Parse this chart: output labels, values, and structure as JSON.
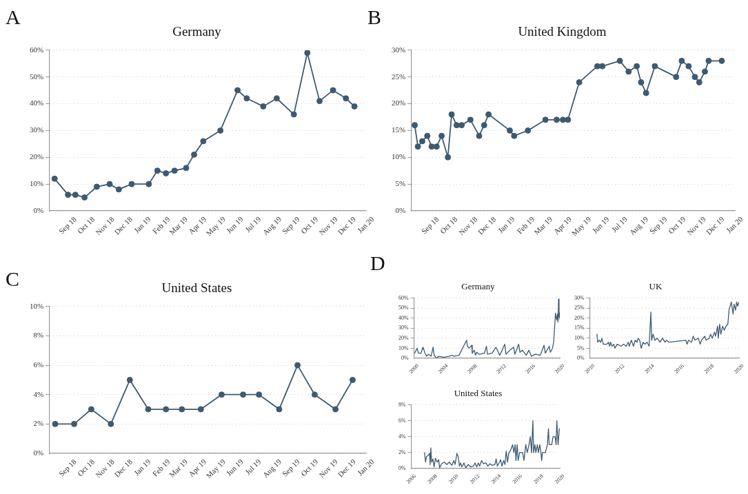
{
  "chart_data": [
    {
      "type": "line",
      "title": "Germany",
      "annotations": [
        "A"
      ],
      "marker": "circle",
      "grid": "y",
      "color": "#3e5a70",
      "x": [
        "2018-08-10",
        "2018-09-01",
        "2018-09-13",
        "2018-09-28",
        "2018-10-18",
        "2018-11-08",
        "2018-11-23",
        "2018-12-14",
        "2019-01-11",
        "2019-01-25",
        "2019-02-08",
        "2019-02-22",
        "2019-03-13",
        "2019-03-26",
        "2019-04-10",
        "2019-05-08",
        "2019-06-05",
        "2019-06-20",
        "2019-07-17",
        "2019-08-08",
        "2019-09-05",
        "2019-09-27",
        "2019-10-17",
        "2019-11-08",
        "2019-11-29",
        "2019-12-13"
      ],
      "values": [
        12,
        6,
        6,
        5,
        9,
        10,
        8,
        10,
        10,
        15,
        14,
        15,
        16,
        21,
        26,
        30,
        45,
        42,
        39,
        42,
        36,
        59,
        41,
        45,
        42,
        39
      ],
      "xlim": [
        "2018-08-01",
        "2020-01-01"
      ],
      "xticks": [
        {
          "value": "2018-09-01",
          "label": "Sep 18"
        },
        {
          "value": "2018-10-01",
          "label": "Oct 18"
        },
        {
          "value": "2018-11-01",
          "label": "Nov 18"
        },
        {
          "value": "2018-12-01",
          "label": "Dec 18"
        },
        {
          "value": "2019-01-01",
          "label": "Jan 19"
        },
        {
          "value": "2019-02-01",
          "label": "Feb 19"
        },
        {
          "value": "2019-03-01",
          "label": "Mar 19"
        },
        {
          "value": "2019-04-01",
          "label": "Apr 19"
        },
        {
          "value": "2019-05-01",
          "label": "May 19"
        },
        {
          "value": "2019-06-01",
          "label": "Jun 19"
        },
        {
          "value": "2019-07-01",
          "label": "Jul 19"
        },
        {
          "value": "2019-08-01",
          "label": "Aug 19"
        },
        {
          "value": "2019-09-01",
          "label": "Sep 19"
        },
        {
          "value": "2019-10-01",
          "label": "Oct 19"
        },
        {
          "value": "2019-11-01",
          "label": "Nov 19"
        },
        {
          "value": "2019-12-01",
          "label": "Dec 19"
        },
        {
          "value": "2020-01-01",
          "label": "Jan 20"
        }
      ],
      "ylim": [
        0,
        60
      ],
      "yticks": [
        {
          "value": 0,
          "label": "0%"
        },
        {
          "value": 10,
          "label": "10%"
        },
        {
          "value": 20,
          "label": "20%"
        },
        {
          "value": 30,
          "label": "30%"
        },
        {
          "value": 40,
          "label": "40%"
        },
        {
          "value": 50,
          "label": "50%"
        },
        {
          "value": 60,
          "label": "60%"
        }
      ]
    },
    {
      "type": "line",
      "title": "United Kingdom",
      "annotations": [
        "B"
      ],
      "marker": "circle",
      "grid": "y",
      "color": "#3e5a70",
      "x": [
        "2018-08-07",
        "2018-08-12",
        "2018-08-19",
        "2018-08-27",
        "2018-09-03",
        "2018-09-11",
        "2018-09-19",
        "2018-09-29",
        "2018-10-05",
        "2018-10-13",
        "2018-10-21",
        "2018-11-04",
        "2018-11-18",
        "2018-11-26",
        "2018-12-03",
        "2019-01-06",
        "2019-01-13",
        "2019-02-04",
        "2019-03-04",
        "2019-03-22",
        "2019-04-01",
        "2019-04-09",
        "2019-04-27",
        "2019-05-26",
        "2019-06-03",
        "2019-07-01",
        "2019-07-15",
        "2019-07-28",
        "2019-08-04",
        "2019-08-12",
        "2019-08-26",
        "2019-09-29",
        "2019-10-08",
        "2019-10-19",
        "2019-10-29",
        "2019-11-05",
        "2019-11-14",
        "2019-11-20",
        "2019-12-11"
      ],
      "values": [
        16,
        12,
        13,
        14,
        12,
        12,
        14,
        10,
        18,
        16,
        16,
        17,
        14,
        16,
        18,
        15,
        14,
        15,
        17,
        17,
        17,
        17,
        24,
        27,
        27,
        28,
        26,
        27,
        24,
        22,
        27,
        25,
        28,
        27,
        25,
        24,
        26,
        28,
        28
      ],
      "xlim": [
        "2018-08-01",
        "2020-01-01"
      ],
      "xticks": [
        {
          "value": "2018-09-01",
          "label": "Sep 18"
        },
        {
          "value": "2018-10-01",
          "label": "Oct 18"
        },
        {
          "value": "2018-11-01",
          "label": "Nov 18"
        },
        {
          "value": "2018-12-01",
          "label": "Dec 18"
        },
        {
          "value": "2019-01-01",
          "label": "Jan 19"
        },
        {
          "value": "2019-02-01",
          "label": "Feb 19"
        },
        {
          "value": "2019-03-01",
          "label": "Mar 19"
        },
        {
          "value": "2019-04-01",
          "label": "Apr 19"
        },
        {
          "value": "2019-05-01",
          "label": "May 19"
        },
        {
          "value": "2019-06-01",
          "label": "Jun 19"
        },
        {
          "value": "2019-07-01",
          "label": "Jul 19"
        },
        {
          "value": "2019-08-01",
          "label": "Aug 19"
        },
        {
          "value": "2019-09-01",
          "label": "Sep 19"
        },
        {
          "value": "2019-10-01",
          "label": "Oct 19"
        },
        {
          "value": "2019-11-01",
          "label": "Nov 19"
        },
        {
          "value": "2019-12-01",
          "label": "Dec 19"
        },
        {
          "value": "2020-01-01",
          "label": "Jan 20"
        }
      ],
      "ylim": [
        0,
        30
      ],
      "yticks": [
        {
          "value": 0,
          "label": "0%"
        },
        {
          "value": 5,
          "label": "5%"
        },
        {
          "value": 10,
          "label": "10%"
        },
        {
          "value": 15,
          "label": "15%"
        },
        {
          "value": 20,
          "label": "20%"
        },
        {
          "value": 25,
          "label": "25%"
        },
        {
          "value": 30,
          "label": "30%"
        }
      ]
    },
    {
      "type": "line",
      "title": "United States",
      "annotations": [
        "C"
      ],
      "marker": "circle",
      "grid": "y",
      "color": "#3e5a70",
      "x": [
        "2018-08-11",
        "2018-09-11",
        "2018-10-09",
        "2018-11-10",
        "2018-12-11",
        "2019-01-10",
        "2019-02-08",
        "2019-03-06",
        "2019-04-06",
        "2019-05-10",
        "2019-06-14",
        "2019-07-10",
        "2019-08-12",
        "2019-09-11",
        "2019-10-09",
        "2019-11-12",
        "2019-12-10"
      ],
      "values": [
        2,
        2,
        3,
        2,
        5,
        3,
        3,
        3,
        3,
        4,
        4,
        4,
        3,
        6,
        4,
        3,
        5
      ],
      "xlim": [
        "2018-08-01",
        "2020-01-01"
      ],
      "xticks": [
        {
          "value": "2018-09-01",
          "label": "Sep 18"
        },
        {
          "value": "2018-10-01",
          "label": "Oct 18"
        },
        {
          "value": "2018-11-01",
          "label": "Nov 18"
        },
        {
          "value": "2018-12-01",
          "label": "Dec 18"
        },
        {
          "value": "2019-01-01",
          "label": "Jan 19"
        },
        {
          "value": "2019-02-01",
          "label": "Feb 19"
        },
        {
          "value": "2019-03-01",
          "label": "Mar 19"
        },
        {
          "value": "2019-04-01",
          "label": "Apr 19"
        },
        {
          "value": "2019-05-01",
          "label": "May 19"
        },
        {
          "value": "2019-06-01",
          "label": "Jun 19"
        },
        {
          "value": "2019-07-01",
          "label": "Jul 19"
        },
        {
          "value": "2019-08-01",
          "label": "Aug 19"
        },
        {
          "value": "2019-09-01",
          "label": "Sep 19"
        },
        {
          "value": "2019-10-01",
          "label": "Oct 19"
        },
        {
          "value": "2019-11-01",
          "label": "Nov 19"
        },
        {
          "value": "2019-12-01",
          "label": "Dec 19"
        },
        {
          "value": "2020-01-01",
          "label": "Jan 20"
        }
      ],
      "ylim": [
        0,
        10
      ],
      "yticks": [
        {
          "value": 0,
          "label": "0%"
        },
        {
          "value": 2,
          "label": "2%"
        },
        {
          "value": 4,
          "label": "4%"
        },
        {
          "value": 6,
          "label": "6%"
        },
        {
          "value": 8,
          "label": "8%"
        },
        {
          "value": 10,
          "label": "10%"
        }
      ]
    },
    {
      "type": "line",
      "title": "Germany",
      "annotations": [
        "D"
      ],
      "grid": "y",
      "color": "#3e5a70",
      "x": [
        2000.07,
        2000.42,
        2000.59,
        2000.94,
        2001.22,
        2001.46,
        2001.71,
        2001.99,
        2002.33,
        2002.61,
        2002.75,
        2003.1,
        2003.38,
        2004.08,
        2004.77,
        2005.3,
        2005.47,
        2006.17,
        2007.21,
        2007.32,
        2007.56,
        2007.91,
        2007.98,
        2008.26,
        2008.43,
        2008.61,
        2008.95,
        2009.65,
        2009.93,
        2010.07,
        2010.7,
        2011.22,
        2011.57,
        2011.74,
        2012.09,
        2012.44,
        2012.61,
        2013.14,
        2013.66,
        2013.83,
        2014.36,
        2014.53,
        2014.88,
        2015.4,
        2015.75,
        2016.1,
        2016.62,
        2017.32,
        2017.84,
        2018.01,
        2018.54,
        2018.71,
        2018.99,
        2019.16,
        2019.41,
        2019.58,
        2019.69,
        2019.76,
        2019.83,
        2019.9,
        2019.97,
        2020.0
      ],
      "values": [
        5,
        10,
        5,
        5,
        11,
        6,
        2,
        4,
        2,
        11,
        3,
        0,
        2,
        1,
        2,
        3,
        2,
        3,
        18,
        12,
        10,
        13,
        5,
        8,
        3,
        6,
        4,
        5,
        12,
        4,
        5,
        11,
        6,
        3,
        8,
        14,
        4,
        8,
        11,
        4,
        14,
        6,
        8,
        3,
        8,
        2,
        4,
        3,
        13,
        5,
        12,
        6,
        10,
        16,
        45,
        38,
        44,
        36,
        59,
        41,
        45,
        39
      ],
      "xlim": [
        2000,
        2020
      ],
      "xticks": [
        2000,
        2004,
        2008,
        2012,
        2016,
        2020
      ],
      "ylim": [
        0,
        60
      ],
      "yticks": [
        {
          "value": 0,
          "label": "0%"
        },
        {
          "value": 10,
          "label": "10%"
        },
        {
          "value": 20,
          "label": "20%"
        },
        {
          "value": 30,
          "label": "30%"
        },
        {
          "value": 40,
          "label": "40%"
        },
        {
          "value": 50,
          "label": "50%"
        },
        {
          "value": 60,
          "label": "60%"
        }
      ]
    },
    {
      "type": "line",
      "title": "UK",
      "grid": "y",
      "color": "#3e5a70",
      "x": [
        2010.47,
        2010.52,
        2010.61,
        2010.73,
        2010.8,
        2010.9,
        2011.13,
        2011.25,
        2011.32,
        2011.39,
        2011.48,
        2011.6,
        2011.67,
        2011.83,
        2012.09,
        2012.26,
        2012.43,
        2012.57,
        2012.64,
        2012.78,
        2012.92,
        2013.04,
        2013.17,
        2013.23,
        2013.34,
        2013.44,
        2013.57,
        2013.69,
        2013.83,
        2013.97,
        2014.09,
        2014.14,
        2014.23,
        2014.35,
        2014.52,
        2014.7,
        2014.87,
        2015.04,
        2015.13,
        2015.3,
        2016.43,
        2016.52,
        2016.61,
        2016.82,
        2016.92,
        2017.04,
        2017.27,
        2017.39,
        2017.48,
        2017.7,
        2017.79,
        2018.0,
        2018.09,
        2018.21,
        2018.35,
        2018.43,
        2018.56,
        2018.61,
        2018.7,
        2018.78,
        2018.9,
        2019.01,
        2019.13,
        2019.25,
        2019.33,
        2019.48,
        2019.6,
        2019.67,
        2019.77,
        2019.84,
        2019.91,
        2020.0
      ],
      "values": [
        12,
        8,
        9,
        8,
        10,
        7,
        7,
        8,
        6,
        8,
        6,
        7,
        5,
        7,
        6,
        7,
        6,
        8,
        6,
        9,
        6,
        9,
        8,
        10,
        9,
        5,
        8,
        7,
        8,
        6,
        23,
        9,
        12,
        9,
        10,
        8,
        10,
        8,
        9,
        8,
        9,
        7,
        9,
        8,
        11,
        9,
        10,
        7,
        9,
        11,
        9,
        10,
        12,
        10,
        13,
        11,
        16,
        10,
        17,
        12,
        16,
        14,
        16,
        17,
        24,
        28,
        22,
        27,
        24,
        28,
        26,
        28
      ],
      "xlim": [
        2010,
        2020
      ],
      "xticks": [
        2010,
        2012,
        2014,
        2016,
        2018,
        2020
      ],
      "ylim": [
        0,
        30
      ],
      "yticks": [
        {
          "value": 0,
          "label": "0%"
        },
        {
          "value": 5,
          "label": "5%"
        },
        {
          "value": 10,
          "label": "10%"
        },
        {
          "value": 15,
          "label": "15%"
        },
        {
          "value": 20,
          "label": "20%"
        },
        {
          "value": 25,
          "label": "25%"
        },
        {
          "value": 30,
          "label": "30%"
        }
      ]
    },
    {
      "type": "line",
      "title": "United States",
      "grid": "y",
      "color": "#3e5a70",
      "x": [
        2007.24,
        2007.34,
        2007.43,
        2007.62,
        2007.72,
        2007.77,
        2007.84,
        2007.91,
        2008.03,
        2008.15,
        2008.27,
        2008.43,
        2008.58,
        2008.67,
        2008.86,
        2009.1,
        2009.34,
        2009.58,
        2009.82,
        2010.01,
        2010.13,
        2010.3,
        2010.44,
        2010.53,
        2010.65,
        2010.77,
        2010.96,
        2011.13,
        2011.37,
        2011.61,
        2011.85,
        2012.01,
        2012.16,
        2012.32,
        2012.44,
        2012.63,
        2012.8,
        2013.04,
        2013.21,
        2013.4,
        2013.64,
        2013.88,
        2014.0,
        2014.11,
        2014.31,
        2014.42,
        2014.54,
        2014.71,
        2014.83,
        2014.95,
        2015.07,
        2015.19,
        2015.36,
        2015.55,
        2015.67,
        2015.79,
        2015.86,
        2015.98,
        2016.07,
        2016.21,
        2016.5,
        2016.62,
        2016.79,
        2016.93,
        2017.1,
        2017.22,
        2017.34,
        2017.46,
        2017.53,
        2017.65,
        2017.74,
        2017.89,
        2017.98,
        2018.12,
        2018.22,
        2018.29,
        2018.36,
        2018.64,
        2018.83,
        2018.93,
        2019.0,
        2019.24,
        2019.36,
        2019.56,
        2019.65,
        2019.72,
        2019.84,
        2019.96
      ],
      "values": [
        2.0,
        0.8,
        1.5,
        1.7,
        1.9,
        0.5,
        2.6,
        0.8,
        1.2,
        0.2,
        1.3,
        0.8,
        1.1,
        0.1,
        0.6,
        0.8,
        0.5,
        0.8,
        0.4,
        1.0,
        0.5,
        1.9,
        1.4,
        0.3,
        0.7,
        0.2,
        0.7,
        0.1,
        0.5,
        0.2,
        0.3,
        0.7,
        0.2,
        0.7,
        0.3,
        1.0,
        0.6,
        0.7,
        0.3,
        0.6,
        0.4,
        0.5,
        1.2,
        0.3,
        0.8,
        1.1,
        0.3,
        1.0,
        0.5,
        2.2,
        0.8,
        1.9,
        2.3,
        3,
        2,
        3,
        1,
        3,
        1,
        2,
        2,
        1,
        3,
        2,
        3,
        4,
        2,
        6,
        2,
        3,
        2,
        3,
        2,
        3,
        2,
        1,
        2,
        2,
        3,
        5,
        3,
        3,
        4,
        4,
        3,
        6,
        3,
        5
      ],
      "xlim": [
        2006,
        2020
      ],
      "xticks": [
        2006,
        2008,
        2010,
        2012,
        2014,
        2016,
        2018,
        2020
      ],
      "ylim": [
        0,
        8
      ],
      "yticks": [
        {
          "value": 0,
          "label": "0%"
        },
        {
          "value": 2,
          "label": "2%"
        },
        {
          "value": 4,
          "label": "4%"
        },
        {
          "value": 6,
          "label": "6%"
        },
        {
          "value": 8,
          "label": "8%"
        }
      ]
    }
  ]
}
